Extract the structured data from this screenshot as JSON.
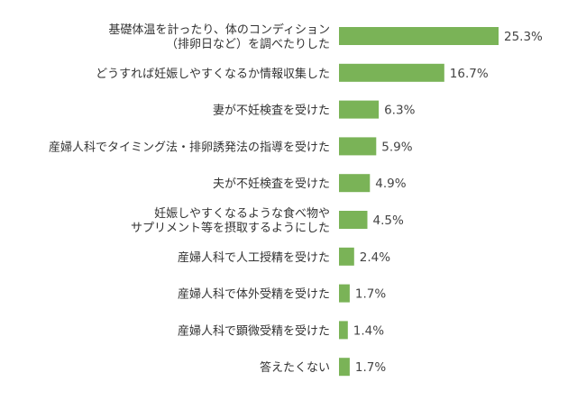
{
  "chart_data": {
    "type": "bar",
    "orientation": "horizontal",
    "bar_color": "#7ab357",
    "unit": "%",
    "title": "",
    "xlabel": "",
    "ylabel": "",
    "grid": false,
    "legend": "none",
    "xlim": [
      0,
      25.3
    ],
    "categories": [
      [
        "基礎体温を計ったり、体のコンディション",
        "（排卵日など）を調べたりした"
      ],
      [
        "どうすれば妊娠しやすくなるか情報収集した"
      ],
      [
        "妻が不妊検査を受けた"
      ],
      [
        "産婦人科でタイミング法・排卵誘発法の指導を受けた"
      ],
      [
        "夫が不妊検査を受けた"
      ],
      [
        "妊娠しやすくなるような食べ物や",
        "サプリメント等を摂取するようにした"
      ],
      [
        "産婦人科で人工授精を受けた"
      ],
      [
        "産婦人科で体外受精を受けた"
      ],
      [
        "産婦人科で顕微受精を受けた"
      ],
      [
        "答えたくない"
      ]
    ],
    "values": [
      25.3,
      16.7,
      6.3,
      5.9,
      4.9,
      4.5,
      2.4,
      1.7,
      1.4,
      1.7
    ],
    "value_labels": [
      "25.3%",
      "16.7%",
      "6.3%",
      "5.9%",
      "4.9%",
      "4.5%",
      "2.4%",
      "1.7%",
      "1.4%",
      "1.7%"
    ]
  }
}
